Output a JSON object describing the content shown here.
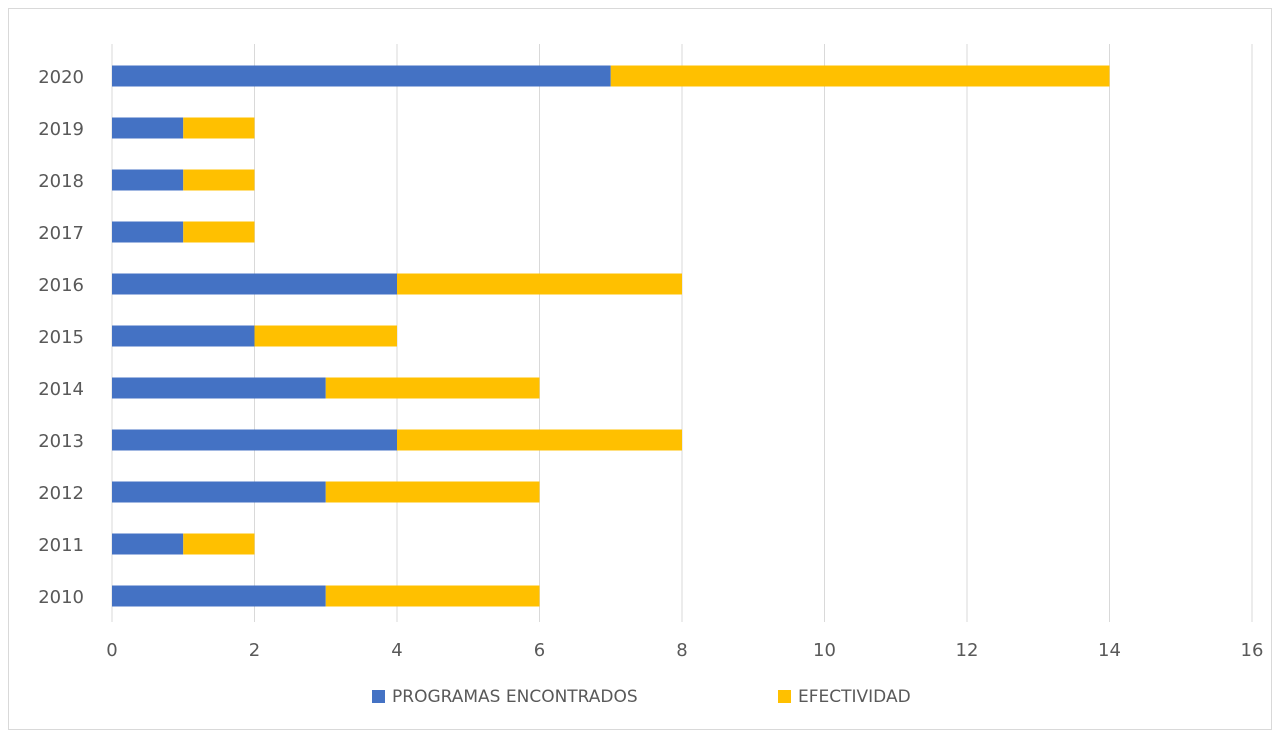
{
  "chart_data": {
    "type": "bar",
    "orientation": "horizontal",
    "stacked": true,
    "categories": [
      "2010",
      "2011",
      "2012",
      "2013",
      "2014",
      "2015",
      "2016",
      "2017",
      "2018",
      "2019",
      "2020"
    ],
    "series": [
      {
        "name": "PROGRAMAS ENCONTRADOS",
        "values": [
          3,
          1,
          3,
          4,
          3,
          2,
          4,
          1,
          1,
          1,
          7
        ],
        "color": "#4472c4"
      },
      {
        "name": "EFECTIVIDAD",
        "values": [
          3,
          1,
          3,
          4,
          3,
          2,
          4,
          1,
          1,
          1,
          7
        ],
        "color": "#ffc000"
      }
    ],
    "xlim": [
      0,
      16
    ],
    "xticks": [
      "0",
      "2",
      "4",
      "6",
      "8",
      "10",
      "12",
      "14",
      "16"
    ],
    "grid": true,
    "legend_position": "bottom"
  }
}
